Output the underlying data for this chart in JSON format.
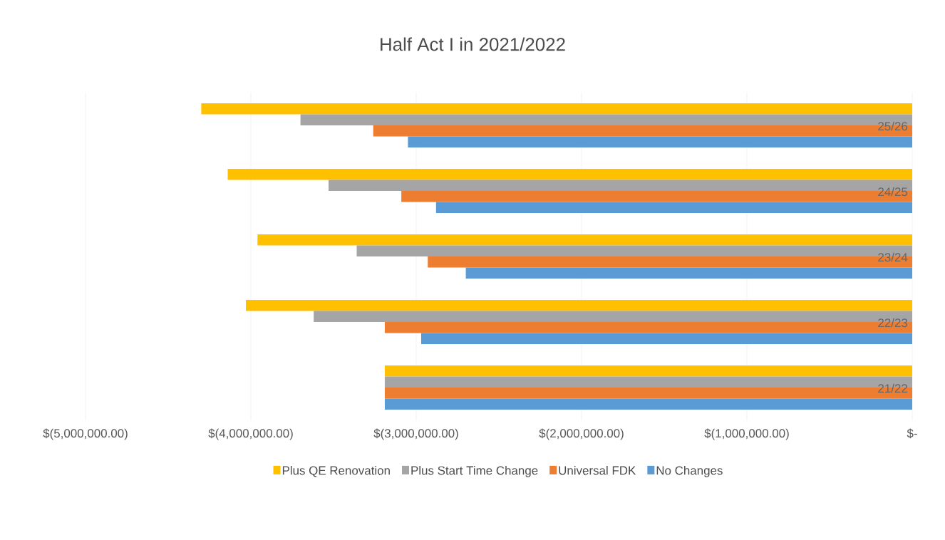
{
  "chart_data": {
    "type": "bar",
    "orientation": "horizontal",
    "title": "Half Act I in 2021/2022",
    "categories": [
      "25/26",
      "24/25",
      "23/24",
      "22/23",
      "21/22"
    ],
    "series": [
      {
        "name": "Plus QE Renovation",
        "color": "#ffc000",
        "values": [
          -4300000,
          -4140000,
          -3960000,
          -4030000,
          -3190000
        ]
      },
      {
        "name": "Plus Start Time Change",
        "color": "#a5a5a5",
        "values": [
          -3700000,
          -3530000,
          -3360000,
          -3620000,
          -3190000
        ]
      },
      {
        "name": "Universal FDK",
        "color": "#ed7d31",
        "values": [
          -3260000,
          -3090000,
          -2930000,
          -3190000,
          -3190000
        ]
      },
      {
        "name": "No Changes",
        "color": "#5b9bd5",
        "values": [
          -3050000,
          -2880000,
          -2700000,
          -2970000,
          -3190000
        ]
      }
    ],
    "xlim": [
      -5000000,
      0
    ],
    "xticks": [
      {
        "value": -5000000,
        "label": "$(5,000,000.00)"
      },
      {
        "value": -4000000,
        "label": "$(4,000,000.00)"
      },
      {
        "value": -3000000,
        "label": "$(3,000,000.00)"
      },
      {
        "value": -2000000,
        "label": "$(2,000,000.00)"
      },
      {
        "value": -1000000,
        "label": "$(1,000,000.00)"
      },
      {
        "value": 0,
        "label": "$-"
      }
    ],
    "grid": "x",
    "legend": "bottom"
  }
}
